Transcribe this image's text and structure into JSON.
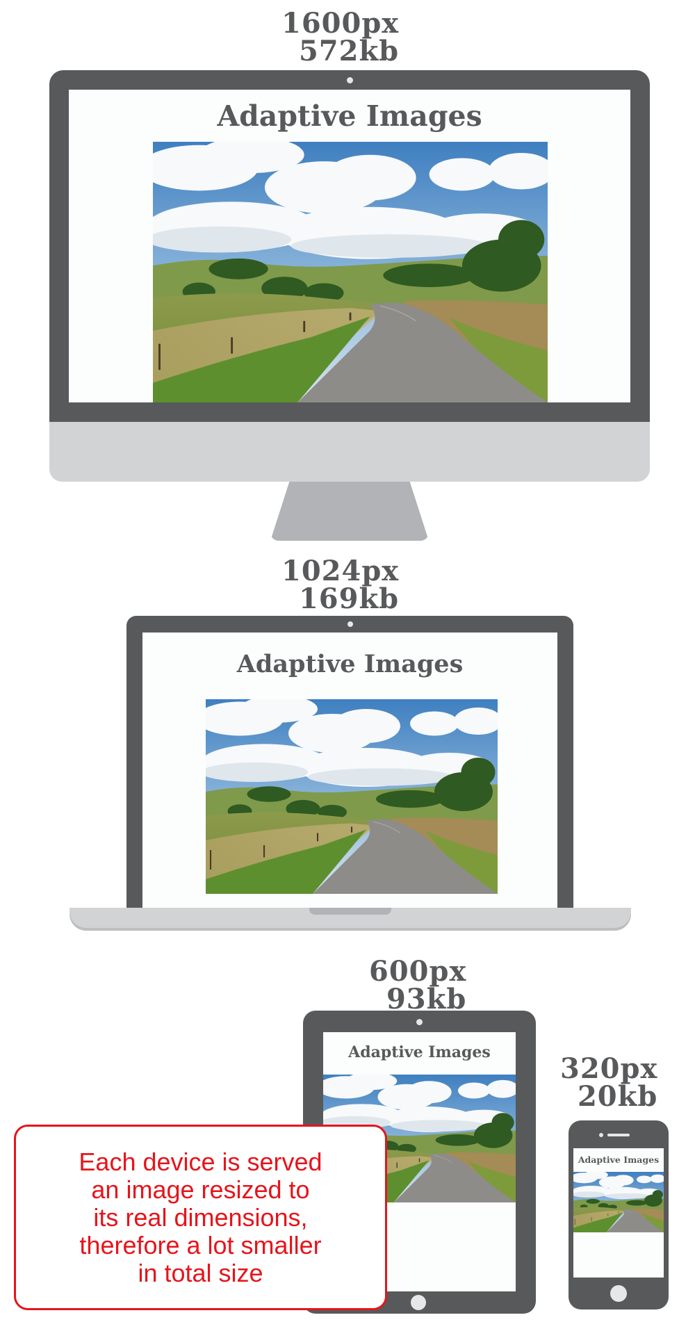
{
  "devices": {
    "desktop": {
      "width_label": "1600px",
      "size_label": "572kb",
      "page_heading": "Adaptive Images"
    },
    "laptop": {
      "width_label": "1024px",
      "size_label": "169kb",
      "page_heading": "Adaptive Images"
    },
    "tablet": {
      "width_label": "600px",
      "size_label": "93kb",
      "page_heading": "Adaptive Images"
    },
    "phone": {
      "width_label": "320px",
      "size_label": "20kb",
      "page_heading": "Adaptive Images"
    }
  },
  "note": {
    "text": "Each device is served\nan image resized to\nits real dimensions,\ntherefore a lot smaller\nin total size"
  },
  "colors": {
    "device_frame": "#58595b",
    "device_base": "#d1d3d4",
    "stand": "#b1b3b6",
    "note_accent": "#e6141b"
  },
  "image_content": "countryside landscape photo with winding road, fields and cloudy sky"
}
